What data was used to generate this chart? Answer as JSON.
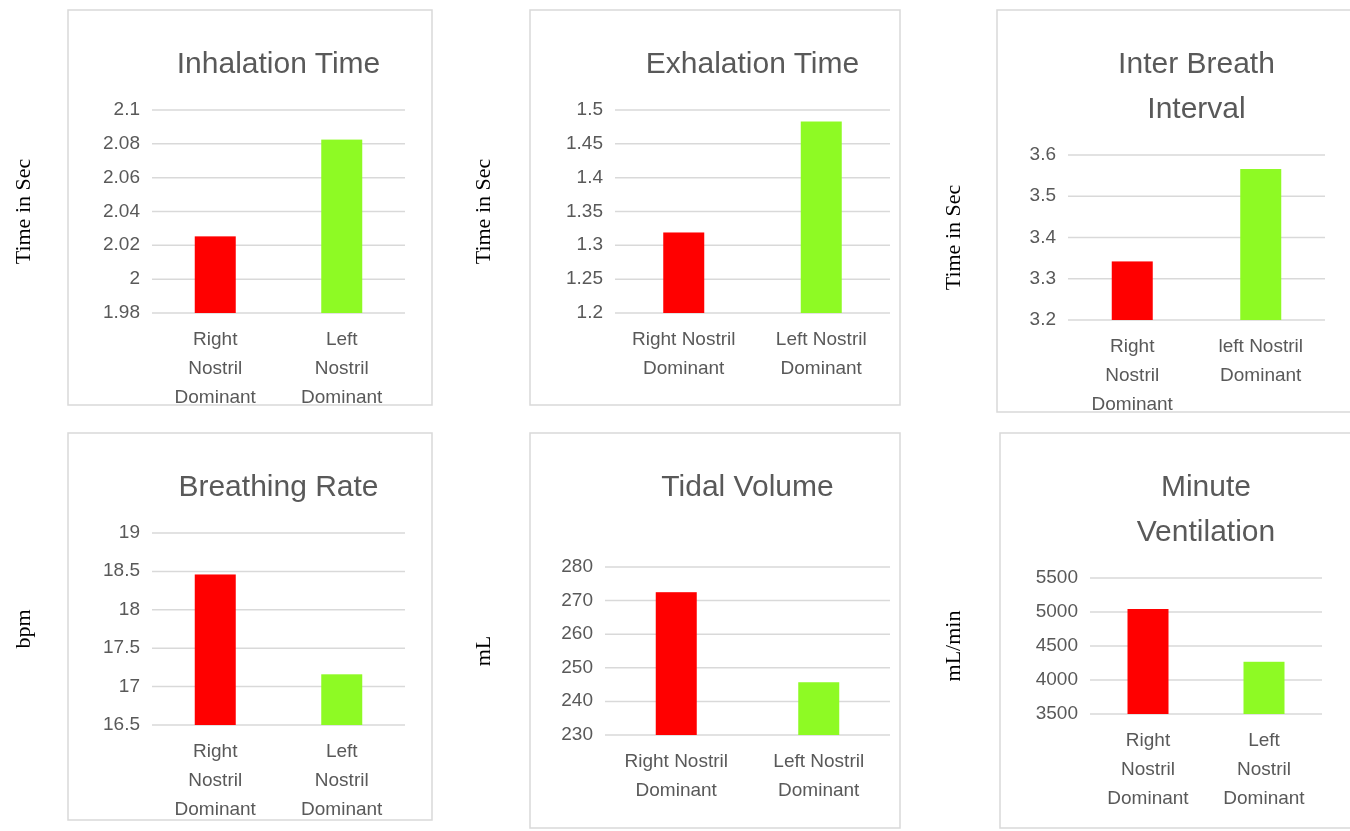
{
  "chart_data": [
    {
      "type": "bar",
      "title": "Inhalation Time",
      "ylabel": "Time in Sec",
      "categories": [
        "Right Nostril Dominant",
        "Left Nostril Dominant"
      ],
      "values": [
        2.0253,
        2.0825
      ],
      "colors": [
        "#ff0000",
        "#8efa24"
      ],
      "ylim": [
        1.98,
        2.1
      ],
      "yticks": [
        1.98,
        2,
        2.02,
        2.04,
        2.06,
        2.08,
        2.1
      ],
      "grid": "y"
    },
    {
      "type": "bar",
      "title": "Exhalation Time",
      "ylabel": "Time in Sec",
      "categories": [
        "Right Nostril Dominant",
        "Left Nostril Dominant"
      ],
      "values": [
        1.319,
        1.483
      ],
      "colors": [
        "#ff0000",
        "#8efa24"
      ],
      "ylim": [
        1.2,
        1.5
      ],
      "yticks": [
        1.2,
        1.25,
        1.3,
        1.35,
        1.4,
        1.45,
        1.5
      ],
      "grid": "y"
    },
    {
      "type": "bar",
      "title": "Inter Breath Interval",
      "ylabel": "Time in Sec",
      "categories": [
        "Right Nostril Dominant",
        "left Nostril Dominant"
      ],
      "values": [
        3.342,
        3.566
      ],
      "colors": [
        "#ff0000",
        "#8efa24"
      ],
      "ylim": [
        3.2,
        3.6
      ],
      "yticks": [
        3.2,
        3.3,
        3.4,
        3.5,
        3.6
      ],
      "grid": "y"
    },
    {
      "type": "bar",
      "title": "Breathing Rate",
      "ylabel": "bpm",
      "categories": [
        "Right Nostril Dominant",
        "Left Nostril Dominant"
      ],
      "values": [
        18.46,
        17.16
      ],
      "colors": [
        "#ff0000",
        "#8efa24"
      ],
      "ylim": [
        16.5,
        19
      ],
      "yticks": [
        16.5,
        17,
        17.5,
        18,
        18.5,
        19
      ],
      "grid": "y"
    },
    {
      "type": "bar",
      "title": "Tidal Volume",
      "ylabel": "mL",
      "categories": [
        "Right Nostril Dominant",
        "Left Nostril Dominant"
      ],
      "values": [
        272.5,
        245.7
      ],
      "colors": [
        "#ff0000",
        "#8efa24"
      ],
      "ylim": [
        230,
        280
      ],
      "yticks": [
        230,
        240,
        250,
        260,
        270,
        280
      ],
      "grid": "y"
    },
    {
      "type": "bar",
      "title": "Minute Ventilation",
      "ylabel": "mL/min",
      "categories": [
        "Right Nostril Dominant",
        "Left Nostril Dominant"
      ],
      "values": [
        5044,
        4268
      ],
      "colors": [
        "#ff0000",
        "#8efa24"
      ],
      "ylim": [
        3500,
        5500
      ],
      "yticks": [
        3500,
        4000,
        4500,
        5000,
        5500
      ],
      "grid": "y"
    }
  ]
}
